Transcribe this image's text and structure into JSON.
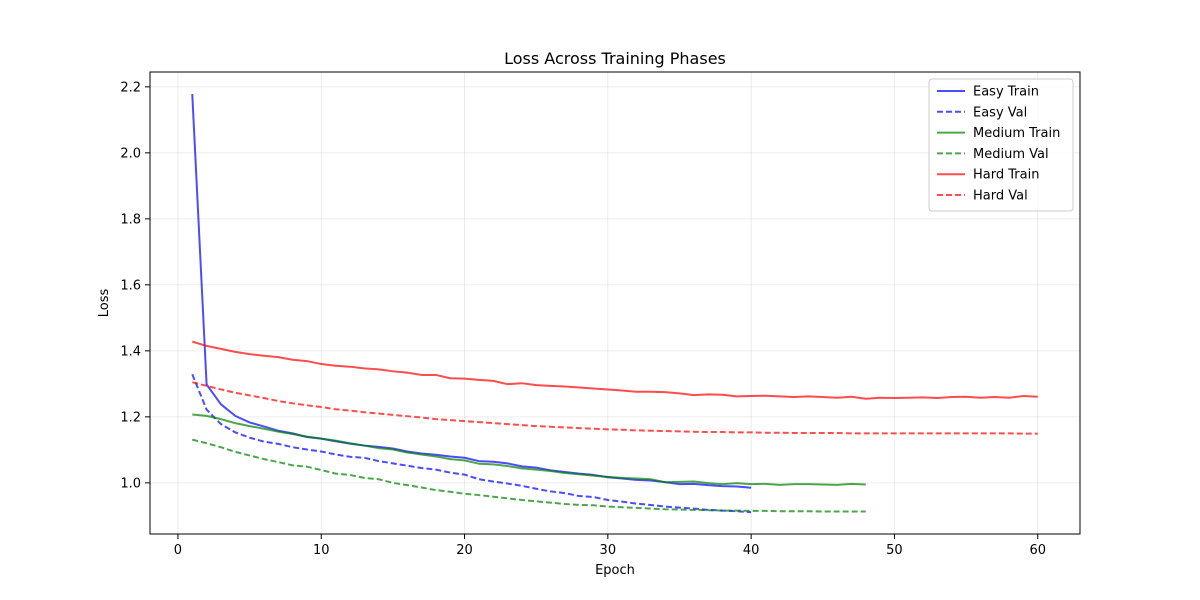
{
  "chart_data": {
    "type": "line",
    "title": "Loss Across Training Phases",
    "xlabel": "Epoch",
    "ylabel": "Loss",
    "xlim": [
      -1.95,
      62.95
    ],
    "ylim": [
      0.845,
      2.245
    ],
    "xticks": [
      0,
      10,
      20,
      30,
      40,
      50,
      60
    ],
    "yticks": [
      1.0,
      1.2,
      1.4,
      1.6,
      1.8,
      2.0,
      2.2
    ],
    "ytick_labels": [
      "1.0",
      "1.2",
      "1.4",
      "1.6",
      "1.8",
      "2.0",
      "2.2"
    ],
    "grid": true,
    "legend_position": "top-right",
    "series": [
      {
        "name": "Easy Train",
        "color": "#0000ff",
        "dash": "solid",
        "x": [
          1,
          2,
          3,
          4,
          5,
          6,
          7,
          8,
          9,
          10,
          11,
          12,
          13,
          14,
          15,
          16,
          17,
          18,
          19,
          20,
          21,
          22,
          23,
          24,
          25,
          26,
          27,
          28,
          29,
          30,
          31,
          32,
          33,
          34,
          35,
          36,
          37,
          38,
          39,
          40
        ],
        "y": [
          2.178,
          1.298,
          1.238,
          1.203,
          1.183,
          1.171,
          1.158,
          1.15,
          1.139,
          1.134,
          1.126,
          1.119,
          1.113,
          1.109,
          1.104,
          1.095,
          1.089,
          1.085,
          1.08,
          1.076,
          1.066,
          1.064,
          1.059,
          1.05,
          1.046,
          1.038,
          1.033,
          1.028,
          1.024,
          1.017,
          1.013,
          1.009,
          1.007,
          1.002,
          0.996,
          0.997,
          0.993,
          0.99,
          0.989,
          0.985
        ]
      },
      {
        "name": "Easy Val",
        "color": "#0000ff",
        "dash": "dashed",
        "x": [
          1,
          2,
          3,
          4,
          5,
          6,
          7,
          8,
          9,
          10,
          11,
          12,
          13,
          14,
          15,
          16,
          17,
          18,
          19,
          20,
          21,
          22,
          23,
          24,
          25,
          26,
          27,
          28,
          29,
          30,
          31,
          32,
          33,
          34,
          35,
          36,
          37,
          38,
          39,
          40
        ],
        "y": [
          1.329,
          1.222,
          1.178,
          1.153,
          1.137,
          1.125,
          1.118,
          1.108,
          1.101,
          1.095,
          1.086,
          1.079,
          1.076,
          1.066,
          1.059,
          1.052,
          1.045,
          1.04,
          1.031,
          1.025,
          1.011,
          1.004,
          0.998,
          0.991,
          0.982,
          0.974,
          0.969,
          0.96,
          0.957,
          0.948,
          0.943,
          0.937,
          0.933,
          0.928,
          0.925,
          0.922,
          0.918,
          0.916,
          0.914,
          0.911
        ]
      },
      {
        "name": "Medium Train",
        "color": "#008000",
        "dash": "solid",
        "x": [
          1,
          2,
          3,
          4,
          5,
          6,
          7,
          8,
          9,
          10,
          11,
          12,
          13,
          14,
          15,
          16,
          17,
          18,
          19,
          20,
          21,
          22,
          23,
          24,
          25,
          26,
          27,
          28,
          29,
          30,
          31,
          32,
          33,
          34,
          35,
          36,
          37,
          38,
          39,
          40,
          41,
          42,
          43,
          44,
          45,
          46,
          47,
          48
        ],
        "y": [
          1.207,
          1.203,
          1.193,
          1.181,
          1.172,
          1.164,
          1.155,
          1.148,
          1.14,
          1.134,
          1.128,
          1.12,
          1.113,
          1.105,
          1.101,
          1.092,
          1.086,
          1.08,
          1.072,
          1.068,
          1.058,
          1.056,
          1.051,
          1.044,
          1.04,
          1.036,
          1.03,
          1.026,
          1.022,
          1.018,
          1.015,
          1.013,
          1.011,
          1.002,
          1.003,
          1.004,
          0.999,
          0.996,
          0.999,
          0.996,
          0.997,
          0.994,
          0.996,
          0.996,
          0.995,
          0.994,
          0.997,
          0.995
        ]
      },
      {
        "name": "Medium Val",
        "color": "#008000",
        "dash": "dashed",
        "x": [
          1,
          2,
          3,
          4,
          5,
          6,
          7,
          8,
          9,
          10,
          11,
          12,
          13,
          14,
          15,
          16,
          17,
          18,
          19,
          20,
          21,
          22,
          23,
          24,
          25,
          26,
          27,
          28,
          29,
          30,
          31,
          32,
          33,
          34,
          35,
          36,
          37,
          38,
          39,
          40,
          41,
          42,
          43,
          44,
          45,
          46,
          47,
          48
        ],
        "y": [
          1.131,
          1.12,
          1.108,
          1.094,
          1.083,
          1.072,
          1.063,
          1.053,
          1.049,
          1.039,
          1.028,
          1.024,
          1.015,
          1.011,
          1.0,
          0.993,
          0.986,
          0.978,
          0.973,
          0.967,
          0.963,
          0.958,
          0.953,
          0.948,
          0.944,
          0.94,
          0.936,
          0.933,
          0.932,
          0.928,
          0.926,
          0.924,
          0.922,
          0.92,
          0.919,
          0.918,
          0.917,
          0.916,
          0.916,
          0.915,
          0.915,
          0.914,
          0.914,
          0.914,
          0.913,
          0.913,
          0.913,
          0.913
        ]
      },
      {
        "name": "Hard Train",
        "color": "#ff0000",
        "dash": "solid",
        "x": [
          1,
          2,
          3,
          4,
          5,
          6,
          7,
          8,
          9,
          10,
          11,
          12,
          13,
          14,
          15,
          16,
          17,
          18,
          19,
          20,
          21,
          22,
          23,
          24,
          25,
          26,
          27,
          28,
          29,
          30,
          31,
          32,
          33,
          34,
          35,
          36,
          37,
          38,
          39,
          40,
          41,
          42,
          43,
          44,
          45,
          46,
          47,
          48,
          49,
          50,
          51,
          52,
          53,
          54,
          55,
          56,
          57,
          58,
          59,
          60
        ],
        "y": [
          1.428,
          1.415,
          1.406,
          1.397,
          1.39,
          1.385,
          1.381,
          1.373,
          1.369,
          1.36,
          1.355,
          1.352,
          1.347,
          1.344,
          1.338,
          1.334,
          1.327,
          1.327,
          1.317,
          1.316,
          1.312,
          1.309,
          1.299,
          1.302,
          1.296,
          1.294,
          1.292,
          1.289,
          1.286,
          1.283,
          1.28,
          1.276,
          1.276,
          1.275,
          1.271,
          1.266,
          1.268,
          1.267,
          1.262,
          1.263,
          1.264,
          1.262,
          1.26,
          1.262,
          1.26,
          1.258,
          1.261,
          1.255,
          1.258,
          1.257,
          1.258,
          1.259,
          1.257,
          1.26,
          1.261,
          1.258,
          1.26,
          1.258,
          1.263,
          1.261
        ]
      },
      {
        "name": "Hard Val",
        "color": "#ff0000",
        "dash": "dashed",
        "x": [
          1,
          2,
          3,
          4,
          5,
          6,
          7,
          8,
          9,
          10,
          11,
          12,
          13,
          14,
          15,
          16,
          17,
          18,
          19,
          20,
          21,
          22,
          23,
          24,
          25,
          26,
          27,
          28,
          29,
          30,
          31,
          32,
          33,
          34,
          35,
          36,
          37,
          38,
          39,
          40,
          41,
          42,
          43,
          44,
          45,
          46,
          47,
          48,
          49,
          50,
          51,
          52,
          53,
          54,
          55,
          56,
          57,
          58,
          59,
          60
        ],
        "y": [
          1.305,
          1.294,
          1.283,
          1.273,
          1.265,
          1.257,
          1.248,
          1.241,
          1.235,
          1.23,
          1.223,
          1.219,
          1.214,
          1.21,
          1.206,
          1.202,
          1.198,
          1.193,
          1.19,
          1.187,
          1.184,
          1.181,
          1.178,
          1.175,
          1.172,
          1.17,
          1.168,
          1.166,
          1.164,
          1.162,
          1.161,
          1.159,
          1.158,
          1.157,
          1.156,
          1.155,
          1.154,
          1.154,
          1.153,
          1.153,
          1.152,
          1.152,
          1.151,
          1.151,
          1.151,
          1.151,
          1.15,
          1.15,
          1.15,
          1.15,
          1.15,
          1.15,
          1.15,
          1.15,
          1.15,
          1.15,
          1.15,
          1.15,
          1.149,
          1.149
        ]
      }
    ]
  }
}
